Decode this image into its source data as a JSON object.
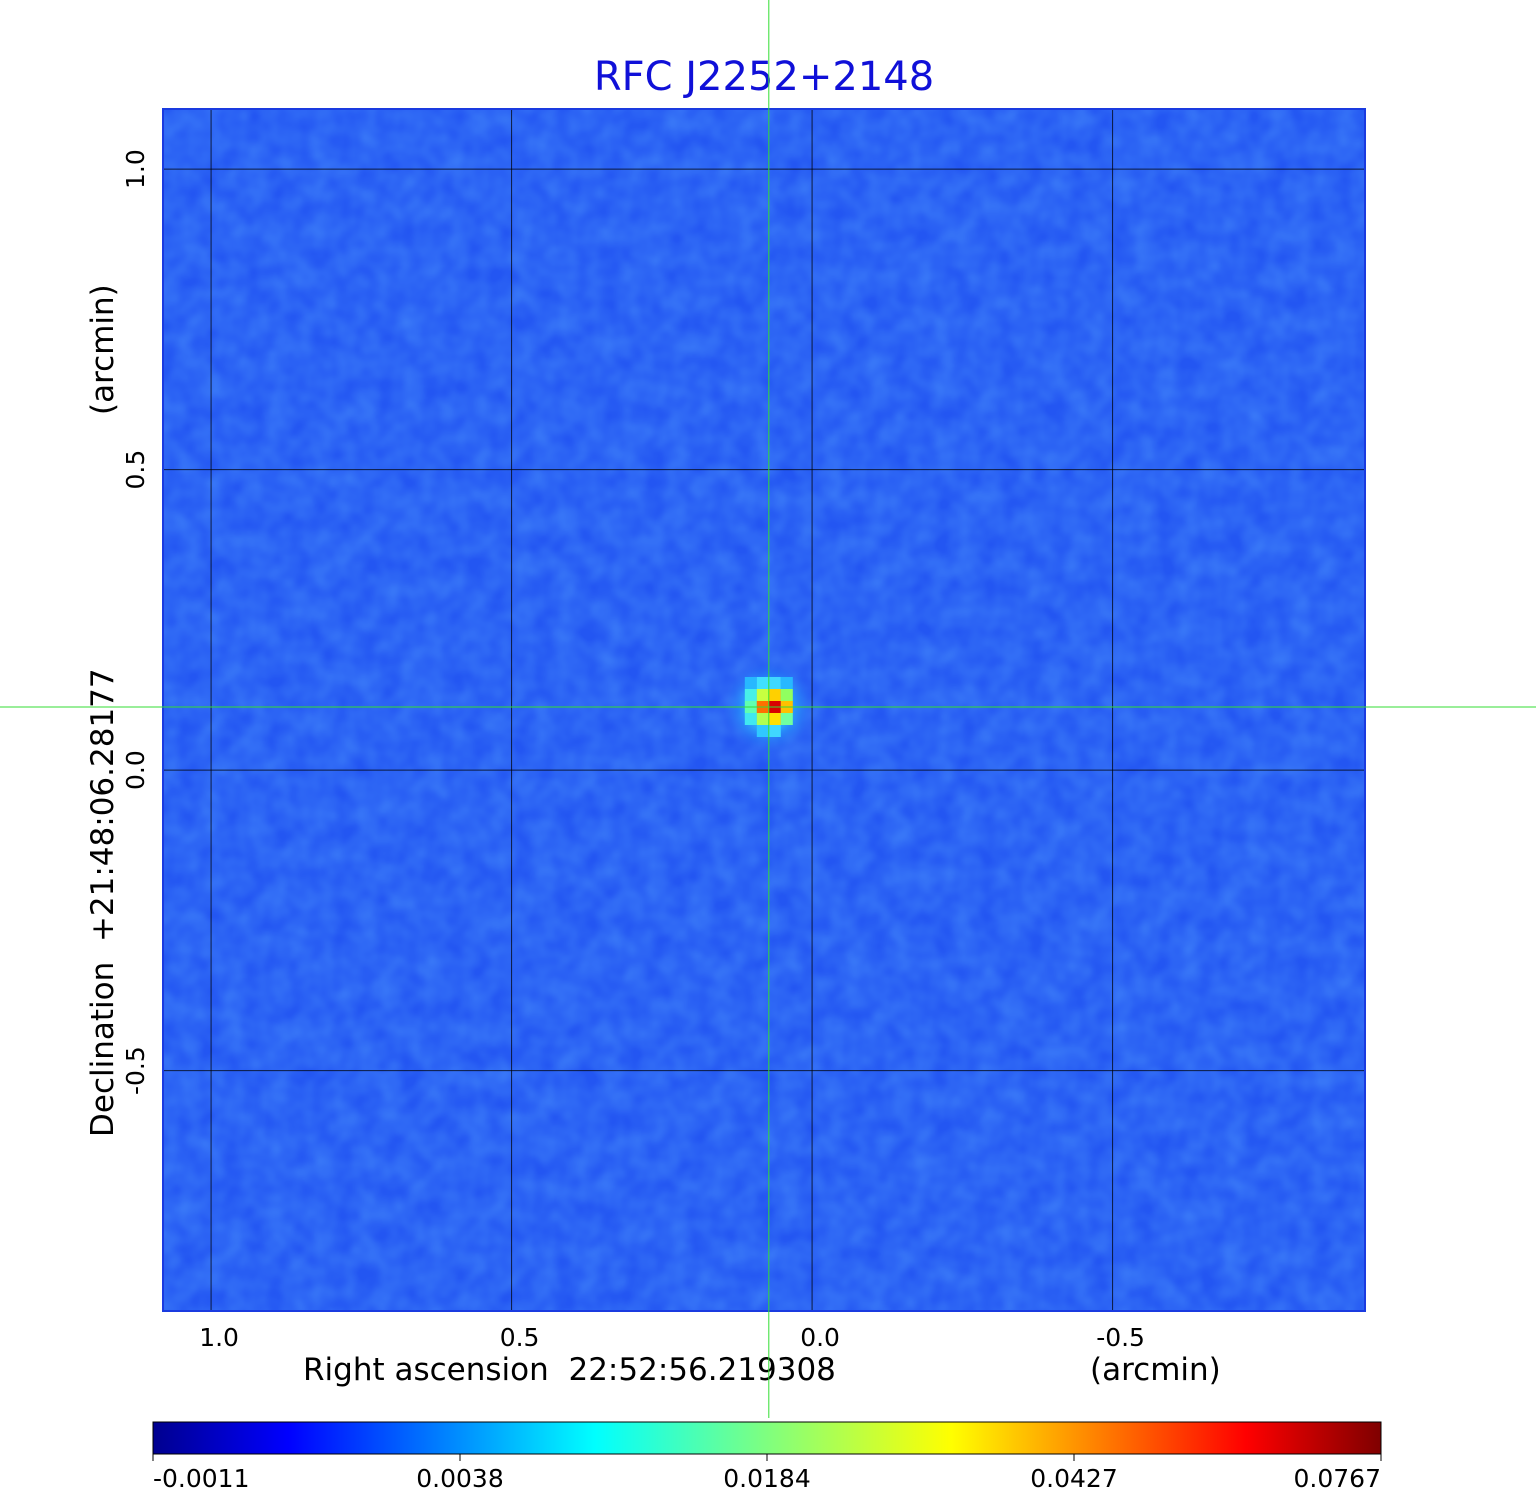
{
  "chart_data": {
    "type": "heatmap",
    "title": "RFC J2252+2148",
    "xlabel": "Right ascension  22:52:56.219308",
    "xunit": "(arcmin)",
    "ylabel": "Declination  +21:48:06.28177",
    "yunit": "(arcmin)",
    "x_axis_reversed": true,
    "xlim": [
      1.08,
      -0.92
    ],
    "ylim": [
      -0.9,
      1.1
    ],
    "x_ticks": [
      1.0,
      0.5,
      0.0,
      -0.5
    ],
    "x_tick_labels": [
      "1.0",
      "0.5",
      "0.0",
      "-0.5"
    ],
    "y_ticks": [
      1.0,
      0.5,
      0.0,
      -0.5
    ],
    "y_tick_labels": [
      "1.0",
      "0.5",
      "0.0",
      "-0.5"
    ],
    "grid": true,
    "colormap": "jet",
    "colorbar": {
      "placement": "bottom",
      "tick_labels": [
        "-0.0011",
        "0.0038",
        "0.0184",
        "0.0427",
        "0.0767"
      ],
      "min": -0.0011,
      "max": 0.0767
    },
    "source_peak": {
      "x": 0.072,
      "y": 0.105,
      "value": 0.0767
    },
    "crosshair": {
      "x": 0.072,
      "y": 0.105,
      "color": "#33dd33"
    },
    "background_color": "#2356f2"
  }
}
